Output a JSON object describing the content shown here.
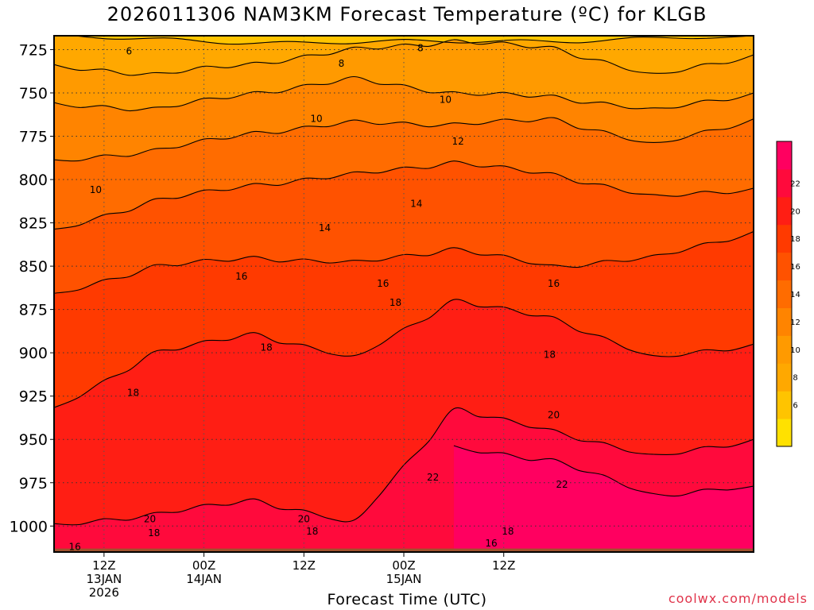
{
  "page": {
    "title": "2026011306 NAM3KM Forecast Temperature (ºC) for KLGB",
    "credit": "coolwx.com/models"
  },
  "chart_data": {
    "type": "contour",
    "title": "2026011306 NAM3KM Forecast Temperature (ºC) for KLGB",
    "xlabel": "Forecast Time (UTC)",
    "ylabel": "",
    "y_axis": {
      "scale": "pressure",
      "inverted": true,
      "range": [
        1015,
        717
      ],
      "ticks": [
        725,
        750,
        775,
        800,
        825,
        850,
        875,
        900,
        925,
        950,
        975,
        1000
      ],
      "gridlines": "dotted"
    },
    "x_axis": {
      "range_hours": [
        0,
        84
      ],
      "ticks": [
        {
          "hour": 6,
          "label": [
            "12Z",
            "13JAN",
            "2026"
          ]
        },
        {
          "hour": 18,
          "label": [
            "00Z",
            "14JAN"
          ]
        },
        {
          "hour": 30,
          "label": [
            "12Z"
          ]
        },
        {
          "hour": 42,
          "label": [
            "00Z",
            "15JAN"
          ]
        },
        {
          "hour": 54,
          "label": [
            "12Z"
          ]
        }
      ],
      "gridlines": "dotted"
    },
    "colorbar": {
      "levels": [
        4,
        6,
        8,
        10,
        12,
        14,
        16,
        18,
        20,
        22,
        24
      ],
      "labels": [
        "6",
        "8",
        "10",
        "12",
        "14",
        "16",
        "18",
        "20",
        "22"
      ],
      "colors": [
        "#ffe100",
        "#ffc400",
        "#ffa800",
        "#ff9a00",
        "#ff8400",
        "#ff6c00",
        "#ff5200",
        "#ff3a00",
        "#ff1e14",
        "#ff0a3c",
        "#ff0060"
      ]
    },
    "contours": [
      {
        "value": 6,
        "pressure": [
          717,
          721,
          720,
          717
        ]
      },
      {
        "value": 8,
        "pressure": [
          735,
          739,
          733,
          725,
          720,
          724,
          740,
          728
        ]
      },
      {
        "value": 10,
        "pressure": [
          757,
          759,
          750,
          742,
          750,
          752,
          760,
          750
        ]
      },
      {
        "value": 12,
        "pressure": [
          790,
          783,
          773,
          767,
          768,
          765,
          780,
          765
        ]
      },
      {
        "value": 14,
        "pressure": [
          830,
          812,
          803,
          797,
          790,
          797,
          810,
          805
        ]
      },
      {
        "value": 16,
        "pressure": [
          867,
          850,
          845,
          848,
          840,
          850,
          845,
          830
        ]
      },
      {
        "value": 18,
        "pressure": [
          933,
          900,
          889,
          903,
          870,
          880,
          903,
          895
        ]
      },
      {
        "value": 20,
        "pressure": [
          1000,
          993,
          985,
          998,
          933,
          945,
          960,
          950
        ]
      },
      {
        "value": 22,
        "pressure": [
          null,
          null,
          null,
          null,
          955,
          962,
          982,
          977
        ]
      }
    ],
    "contour_labels": [
      {
        "text": "6",
        "hour": 9.0,
        "p": 726
      },
      {
        "text": "8",
        "hour": 34.5,
        "p": 733
      },
      {
        "text": "8",
        "hour": 44.0,
        "p": 724
      },
      {
        "text": "10",
        "hour": 5.0,
        "p": 806
      },
      {
        "text": "10",
        "hour": 31.5,
        "p": 765
      },
      {
        "text": "10",
        "hour": 47.0,
        "p": 754
      },
      {
        "text": "12",
        "hour": 48.5,
        "p": 778
      },
      {
        "text": "14",
        "hour": 32.5,
        "p": 828
      },
      {
        "text": "14",
        "hour": 43.5,
        "p": 814
      },
      {
        "text": "16",
        "hour": 22.5,
        "p": 856
      },
      {
        "text": "16",
        "hour": 39.5,
        "p": 860
      },
      {
        "text": "16",
        "hour": 60.0,
        "p": 860
      },
      {
        "text": "18",
        "hour": 9.5,
        "p": 923
      },
      {
        "text": "18",
        "hour": 25.5,
        "p": 897
      },
      {
        "text": "18",
        "hour": 41.0,
        "p": 871
      },
      {
        "text": "18",
        "hour": 59.5,
        "p": 901
      },
      {
        "text": "18",
        "hour": 12.0,
        "p": 1004
      },
      {
        "text": "18",
        "hour": 31.0,
        "p": 1003
      },
      {
        "text": "18",
        "hour": 54.5,
        "p": 1003
      },
      {
        "text": "20",
        "hour": 11.5,
        "p": 996
      },
      {
        "text": "20",
        "hour": 30.0,
        "p": 996
      },
      {
        "text": "20",
        "hour": 60.0,
        "p": 936
      },
      {
        "text": "22",
        "hour": 45.5,
        "p": 972
      },
      {
        "text": "22",
        "hour": 61.0,
        "p": 976
      },
      {
        "text": "16",
        "hour": 2.5,
        "p": 1012
      },
      {
        "text": "16",
        "hour": 52.5,
        "p": 1010
      }
    ],
    "surface": {
      "color": "#a0522d",
      "pressure": 1013
    },
    "legend": "colorbar-right",
    "grid": true
  }
}
